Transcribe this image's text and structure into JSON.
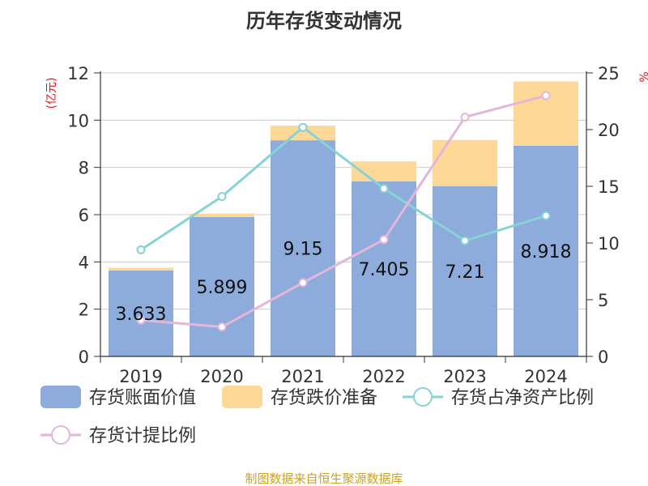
{
  "chart_data": {
    "type": "bar",
    "title": "历年存货变动情况",
    "categories": [
      "2019",
      "2020",
      "2021",
      "2022",
      "2023",
      "2024"
    ],
    "left_axis": {
      "unit_label": "(亿元)",
      "ylim": [
        0,
        12
      ],
      "ticks": [
        "0",
        "2",
        "4",
        "6",
        "8",
        "10",
        "12"
      ]
    },
    "right_axis": {
      "unit_label": "%",
      "ylim": [
        0,
        25
      ],
      "ticks": [
        "0",
        "5",
        "10",
        "15",
        "20",
        "25"
      ]
    },
    "series": [
      {
        "name": "存货账面价值",
        "kind": "bar",
        "axis": "left",
        "color": "#8eacdb",
        "values": [
          3.633,
          5.899,
          9.15,
          7.405,
          7.21,
          8.918
        ],
        "labels": [
          "3.633",
          "5.899",
          "9.15",
          "7.405",
          "7.21",
          "8.918"
        ]
      },
      {
        "name": "存货跌价准备",
        "kind": "bar",
        "axis": "left",
        "color": "#fdd896",
        "values": [
          0.12,
          0.15,
          0.62,
          0.85,
          1.95,
          2.72
        ]
      },
      {
        "name": "存货占净资产比例",
        "kind": "line",
        "axis": "right",
        "color": "#86d3d6",
        "values": [
          9.4,
          14.1,
          20.2,
          14.8,
          10.2,
          12.4
        ]
      },
      {
        "name": "存货计提比例",
        "kind": "line",
        "axis": "right",
        "color": "#e4b6d8",
        "values": [
          3.2,
          2.6,
          6.5,
          10.3,
          21.1,
          23.0
        ]
      }
    ],
    "grid": true,
    "legend_position": "bottom"
  },
  "footer": {
    "source": "制图数据来自恒生聚源数据库"
  }
}
